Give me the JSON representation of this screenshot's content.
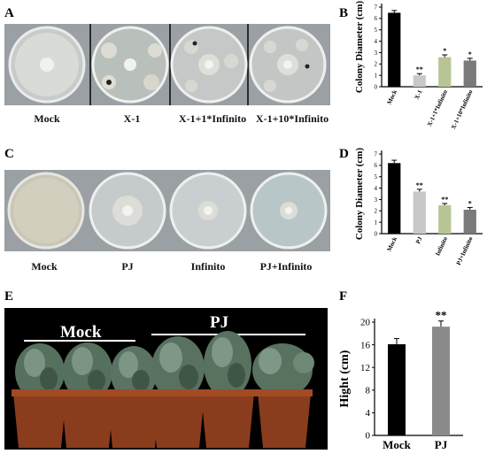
{
  "panels": {
    "A": {
      "label": "A",
      "dishes": [
        "Mock",
        "X-1",
        "X-1+1*Infinito",
        "X-1+10*Infinito"
      ]
    },
    "C": {
      "label": "C",
      "dishes": [
        "Mock",
        "PJ",
        "Infinito",
        "PJ+Infinito"
      ]
    },
    "E": {
      "label": "E",
      "group_labels": [
        "Mock",
        "PJ"
      ]
    }
  },
  "chart_data": [
    {
      "panel": "B",
      "type": "bar",
      "categories": [
        "Mock",
        "X-1",
        "X-1+1*Infinito",
        "X-1+10*Infinito"
      ],
      "values": [
        6.5,
        1.0,
        2.6,
        2.3
      ],
      "errors": [
        0.2,
        0.15,
        0.2,
        0.2
      ],
      "significance": [
        "",
        "**",
        "*",
        "*"
      ],
      "colors": [
        "#000000",
        "#c8c8c8",
        "#b7c594",
        "#7a7a7a"
      ],
      "ylabel": "Colony  Diameter (cm)",
      "ylim": [
        0,
        7
      ],
      "yticks": [
        0,
        1,
        2,
        3,
        4,
        5,
        6,
        7
      ]
    },
    {
      "panel": "D",
      "type": "bar",
      "categories": [
        "Mock",
        "PJ",
        "Infinito",
        "PJ+Infinito"
      ],
      "values": [
        6.2,
        3.7,
        2.5,
        2.1
      ],
      "errors": [
        0.25,
        0.2,
        0.15,
        0.2
      ],
      "significance": [
        "",
        "**",
        "**",
        "*"
      ],
      "colors": [
        "#000000",
        "#c8c8c8",
        "#b7c594",
        "#7a7a7a"
      ],
      "ylabel": "Colony  Diameter (cm)",
      "ylim": [
        0,
        7
      ],
      "yticks": [
        0,
        1,
        2,
        3,
        4,
        5,
        6,
        7
      ]
    },
    {
      "panel": "F",
      "type": "bar",
      "categories": [
        "Mock",
        "PJ"
      ],
      "values": [
        16.1,
        19.2
      ],
      "errors": [
        1.0,
        1.0
      ],
      "significance": [
        "",
        "**"
      ],
      "colors": [
        "#000000",
        "#8a8a8a"
      ],
      "ylabel": "Hight (cm)",
      "ylim": [
        0,
        20
      ],
      "yticks": [
        0,
        4,
        8,
        12,
        16,
        20
      ]
    }
  ]
}
